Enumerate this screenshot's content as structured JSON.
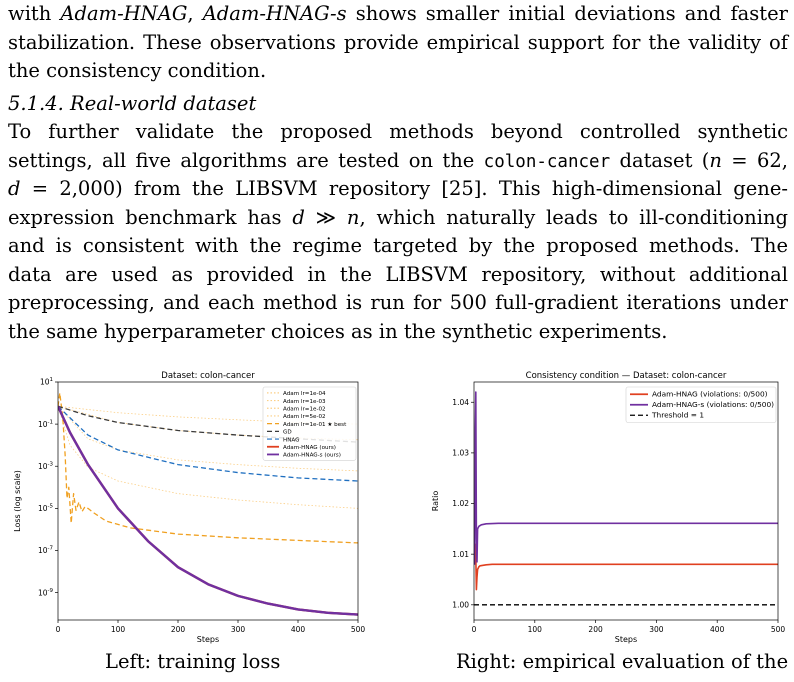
{
  "intro_lines": [
    [
      {
        "t": "with "
      },
      {
        "t": "Adam-HNAG",
        "s": "it"
      },
      {
        "t": ", "
      },
      {
        "t": "Adam-HNAG-s",
        "s": "it"
      },
      {
        "t": " shows smaller initial deviations and faster"
      }
    ],
    [
      {
        "t": "stabilization. These observations provide empirical support for the validity of"
      }
    ],
    [
      {
        "t": "the consistency condition."
      }
    ]
  ],
  "section_heading": "5.1.4.  Real-world dataset",
  "para_lines": [
    [
      {
        "t": "      To further validate the proposed methods beyond controlled synthetic"
      }
    ],
    [
      {
        "t": "settings, all five algorithms are tested on the "
      },
      {
        "t": "colon-cancer",
        "s": "mono"
      },
      {
        "t": " dataset ("
      },
      {
        "t": "n",
        "s": "it"
      },
      {
        "t": " = 62,"
      }
    ],
    [
      {
        "t": "d",
        "s": "it"
      },
      {
        "t": " = 2,000) from the LIBSVM repository [25]. This high-dimensional gene-"
      }
    ],
    [
      {
        "t": "expression benchmark has "
      },
      {
        "t": "d",
        "s": "it"
      },
      {
        "t": " ≫ "
      },
      {
        "t": "n",
        "s": "it"
      },
      {
        "t": ", which naturally leads to ill-conditioning"
      }
    ],
    [
      {
        "t": "and is consistent with the regime targeted by the proposed methods. The"
      }
    ],
    [
      {
        "t": "data are used as provided in the LIBSVM repository, without additional"
      }
    ],
    [
      {
        "t": "preprocessing, and each method is run for 500 full-gradient iterations under"
      }
    ],
    [
      {
        "t": "the same hyperparameter choices as in the synthetic experiments."
      }
    ]
  ],
  "chart_data": [
    {
      "type": "line",
      "title": "Dataset: colon-cancer",
      "xlabel": "Steps",
      "ylabel": "Loss (log scale)",
      "yscale": "log",
      "xlim": [
        0,
        500
      ],
      "ylim": [
        5e-11,
        10
      ],
      "x_ticks": [
        "0",
        "100",
        "200",
        "300",
        "400",
        "500"
      ],
      "y_ticks": [
        "10^1",
        "10^-1",
        "10^-3",
        "10^-5",
        "10^-7",
        "10^-9"
      ],
      "legend_position": "top-right",
      "series": [
        {
          "name": "Adam lr=1e-04",
          "color": "#fbcf86",
          "dash": "dotted",
          "points": [
            [
              0,
              0.7
            ],
            [
              100,
              0.35
            ],
            [
              200,
              0.22
            ],
            [
              300,
              0.16
            ],
            [
              400,
              0.12
            ],
            [
              500,
              0.1
            ]
          ]
        },
        {
          "name": "Adam lr=1e-03",
          "color": "#fbcf86",
          "dash": "dotted",
          "points": [
            [
              0,
              0.7
            ],
            [
              100,
              0.12
            ],
            [
              200,
              0.05
            ],
            [
              300,
              0.03
            ],
            [
              400,
              0.022
            ],
            [
              500,
              0.018
            ]
          ]
        },
        {
          "name": "Adam lr=1e-02",
          "color": "#fbcf86",
          "dash": "dotted",
          "points": [
            [
              0,
              0.7
            ],
            [
              50,
              0.02
            ],
            [
              100,
              0.006
            ],
            [
              200,
              0.002
            ],
            [
              300,
              0.0012
            ],
            [
              400,
              0.0008
            ],
            [
              500,
              0.0006
            ]
          ]
        },
        {
          "name": "Adam lr=5e-02",
          "color": "#fbcf86",
          "dash": "dotted",
          "points": [
            [
              0,
              0.7
            ],
            [
              20,
              0.01
            ],
            [
              50,
              0.0009
            ],
            [
              100,
              0.0002
            ],
            [
              200,
              5e-05
            ],
            [
              300,
              2.5e-05
            ],
            [
              400,
              1.5e-05
            ],
            [
              500,
              1e-05
            ]
          ]
        },
        {
          "name": "Adam lr=1e-01 ★ best",
          "color": "#f0a020",
          "dash": "dashed",
          "points": [
            [
              0,
              0.7
            ],
            [
              3,
              3
            ],
            [
              8,
              0.2
            ],
            [
              12,
              0.003
            ],
            [
              15,
              3e-05
            ],
            [
              18,
              0.0001
            ],
            [
              22,
              2e-06
            ],
            [
              26,
              5e-05
            ],
            [
              30,
              8e-06
            ],
            [
              35,
              2e-05
            ],
            [
              40,
              7e-06
            ],
            [
              45,
              1.2e-05
            ],
            [
              50,
              1e-05
            ],
            [
              60,
              6e-06
            ],
            [
              80,
              2.5e-06
            ],
            [
              120,
              1.2e-06
            ],
            [
              200,
              6e-07
            ],
            [
              300,
              4e-07
            ],
            [
              400,
              3e-07
            ],
            [
              500,
              2.3e-07
            ]
          ]
        },
        {
          "name": "GD",
          "color": "#3a3a3a",
          "dash": "dashed",
          "points": [
            [
              0,
              0.7
            ],
            [
              50,
              0.25
            ],
            [
              100,
              0.12
            ],
            [
              200,
              0.05
            ],
            [
              300,
              0.03
            ],
            [
              400,
              0.02
            ],
            [
              500,
              0.014
            ]
          ]
        },
        {
          "name": "HNAG",
          "color": "#1f6fc0",
          "dash": "dashed",
          "points": [
            [
              0,
              0.7
            ],
            [
              50,
              0.03
            ],
            [
              100,
              0.006
            ],
            [
              200,
              0.0012
            ],
            [
              300,
              0.0005
            ],
            [
              400,
              0.00028
            ],
            [
              500,
              0.0002
            ]
          ]
        },
        {
          "name": "Adam-HNAG (ours)",
          "color": "#e04020",
          "dash": "solid",
          "points": [
            [
              0,
              0.7
            ],
            [
              20,
              0.04
            ],
            [
              50,
              0.0012
            ],
            [
              100,
              1e-05
            ],
            [
              150,
              2.8e-07
            ],
            [
              200,
              1.6e-08
            ],
            [
              250,
              2.5e-09
            ],
            [
              300,
              7e-10
            ],
            [
              350,
              3e-10
            ],
            [
              400,
              1.6e-10
            ],
            [
              450,
              1.1e-10
            ],
            [
              500,
              9e-11
            ]
          ]
        },
        {
          "name": "Adam-HNAG-s (ours)",
          "color": "#7030a0",
          "dash": "solid",
          "points": [
            [
              0,
              0.7
            ],
            [
              20,
              0.04
            ],
            [
              50,
              0.0012
            ],
            [
              100,
              1e-05
            ],
            [
              150,
              2.8e-07
            ],
            [
              200,
              1.6e-08
            ],
            [
              250,
              2.5e-09
            ],
            [
              300,
              7e-10
            ],
            [
              350,
              3e-10
            ],
            [
              400,
              1.6e-10
            ],
            [
              450,
              1.1e-10
            ],
            [
              500,
              9e-11
            ]
          ]
        }
      ]
    },
    {
      "type": "line",
      "title": "Consistency condition — Dataset: colon-cancer",
      "xlabel": "Steps",
      "ylabel": "Ratio",
      "xlim": [
        0,
        500
      ],
      "ylim": [
        0.997,
        1.044
      ],
      "x_ticks": [
        "0",
        "100",
        "200",
        "300",
        "400",
        "500"
      ],
      "y_ticks": [
        "1.00",
        "1.01",
        "1.02",
        "1.03",
        "1.04"
      ],
      "legend_position": "top-right",
      "series": [
        {
          "name": "Adam-HNAG (violations: 0/500)",
          "color": "#e04020",
          "dash": "solid",
          "points": [
            [
              1,
              1.008
            ],
            [
              2,
              1.012
            ],
            [
              3,
              1.0095
            ],
            [
              4,
              1.003
            ],
            [
              5,
              1.0055
            ],
            [
              6,
              1.007
            ],
            [
              8,
              1.0075
            ],
            [
              10,
              1.0077
            ],
            [
              15,
              1.0078
            ],
            [
              20,
              1.0079
            ],
            [
              30,
              1.008
            ],
            [
              500,
              1.008
            ]
          ]
        },
        {
          "name": "Adam-HNAG-s (violations: 0/500)",
          "color": "#7030a0",
          "dash": "solid",
          "points": [
            [
              1,
              1.0079
            ],
            [
              2,
              1.0335
            ],
            [
              3,
              1.042
            ],
            [
              4,
              1.013
            ],
            [
              5,
              1.0085
            ],
            [
              6,
              1.015
            ],
            [
              8,
              1.0155
            ],
            [
              12,
              1.0158
            ],
            [
              20,
              1.016
            ],
            [
              40,
              1.0161
            ],
            [
              500,
              1.0161
            ]
          ]
        },
        {
          "name": "Threshold = 1",
          "color": "#000000",
          "dash": "dashed",
          "points": [
            [
              0,
              1.0
            ],
            [
              500,
              1.0
            ]
          ]
        }
      ]
    }
  ],
  "captions": {
    "left": "Left: training loss",
    "right": "Right: empirical evaluation of the"
  }
}
